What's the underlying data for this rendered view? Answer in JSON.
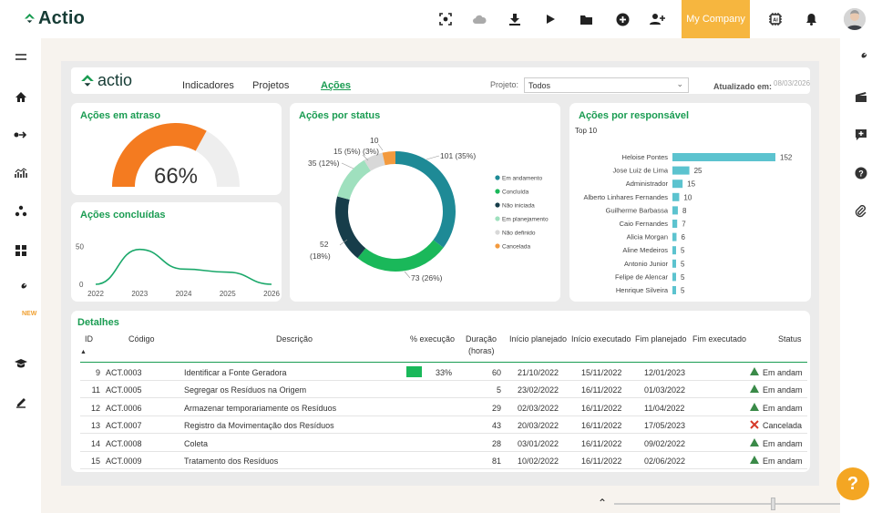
{
  "topbar": {
    "brand": "Actio",
    "company": "My Company",
    "icons": [
      "scan-icon",
      "cloud-icon",
      "download-icon",
      "play-icon",
      "folder-icon",
      "add-circle-icon",
      "add-user-icon",
      "ai-chip-icon",
      "bell-icon"
    ]
  },
  "leftbar": {
    "new_badge": "NEW",
    "icons": [
      "menu-icon",
      "home-icon",
      "flow-icon",
      "analytics-icon",
      "nodes-icon",
      "grid-icon",
      "wrench-icon",
      "graduation-cap-icon",
      "sign-icon"
    ]
  },
  "rightbar": {
    "icons": [
      "wrench-icon",
      "clapperboard-icon",
      "comment-add-icon",
      "help-circle-icon",
      "paperclip-icon"
    ]
  },
  "report": {
    "logo": "actio",
    "tabs": [
      "Indicadores",
      "Projetos",
      "Ações"
    ],
    "active_tab": "Ações",
    "project_label": "Projeto:",
    "project_value": "Todos",
    "updated_label": "Atualizado em:",
    "updated_value": "08/03/2026"
  },
  "gauge": {
    "title": "Ações em atraso",
    "value_text": "66%",
    "percent": 66,
    "color": "#f47b20"
  },
  "concluidas": {
    "title": "Ações concluídas"
  },
  "status": {
    "title": "Ações por status",
    "legend": [
      "Em andamento",
      "Concluída",
      "Não iniciada",
      "Em planejamento",
      "Não definido",
      "Cancelada"
    ]
  },
  "responsavel": {
    "title": "Ações por responsável",
    "subtitle": "Top 10"
  },
  "chart_data": [
    {
      "type": "line",
      "title": "Ações concluídas",
      "x": [
        "2022",
        "2023",
        "2024",
        "2025",
        "2026"
      ],
      "series": [
        {
          "values": [
            0,
            46,
            20,
            16,
            0
          ]
        }
      ],
      "y_ticks": [
        "50",
        "0"
      ],
      "ylim": [
        0,
        60
      ]
    },
    {
      "type": "pie",
      "title": "Ações por status",
      "categories": [
        "Em andamento",
        "Concluída",
        "Não iniciada",
        "Em planejamento",
        "Não definido",
        "Cancelada"
      ],
      "values": [
        101,
        73,
        52,
        35,
        15,
        10
      ],
      "labels": [
        "101 (35%)",
        "73 (26%)",
        "52",
        "(18%)",
        "35 (12%)",
        "15 (5%)",
        "(3%)",
        "10"
      ],
      "colors": [
        "#1e8a96",
        "#1ab85a",
        "#173d4a",
        "#9fe0be",
        "#d8d8d8",
        "#f39a3e"
      ]
    },
    {
      "type": "bar",
      "title": "Ações por responsável",
      "subtitle": "Top 10",
      "categories": [
        "Heloise Pontes",
        "Jose Luiz de Lima",
        "Administrador",
        "Alberto Linhares Fernandes",
        "Guilherme Barbassa",
        "Caio Fernandes",
        "Alicia Morgan",
        "Aline Medeiros",
        "Antonio Junior",
        "Felipe de Alencar",
        "Henrique Silveira"
      ],
      "values": [
        152,
        25,
        15,
        10,
        8,
        7,
        6,
        5,
        5,
        5,
        5
      ],
      "color": "#5cc3cf"
    }
  ],
  "table": {
    "title": "Detalhes",
    "headers": [
      "ID",
      "Código",
      "Descrição",
      "% execução",
      "Duração",
      "(horas)",
      "Início planejado",
      "Início executado",
      "Fim planejado",
      "Fim executado",
      "Status"
    ],
    "rows": [
      {
        "id": "9",
        "code": "ACT.0003",
        "desc": "Identificar a Fonte Geradora",
        "pct": "33%",
        "pct_value": 33,
        "dur": "60",
        "ip": "21/10/2022",
        "ie": "15/11/2022",
        "fp": "12/01/2023",
        "fe": "",
        "status": "Em andam",
        "status_type": "ok"
      },
      {
        "id": "11",
        "code": "ACT.0005",
        "desc": "Segregar os Resíduos na Origem",
        "pct": "",
        "pct_value": 0,
        "dur": "5",
        "ip": "23/02/2022",
        "ie": "16/11/2022",
        "fp": "01/03/2022",
        "fe": "",
        "status": "Em andam",
        "status_type": "ok"
      },
      {
        "id": "12",
        "code": "ACT.0006",
        "desc": "Armazenar temporariamente os Resíduos",
        "pct": "",
        "pct_value": 0,
        "dur": "29",
        "ip": "02/03/2022",
        "ie": "16/11/2022",
        "fp": "11/04/2022",
        "fe": "",
        "status": "Em andam",
        "status_type": "ok"
      },
      {
        "id": "13",
        "code": "ACT.0007",
        "desc": "Registro da Movimentação dos Resíduos",
        "pct": "",
        "pct_value": 0,
        "dur": "43",
        "ip": "20/03/2022",
        "ie": "16/11/2022",
        "fp": "17/05/2023",
        "fe": "",
        "status": "Cancelada",
        "status_type": "cancel"
      },
      {
        "id": "14",
        "code": "ACT.0008",
        "desc": "Coleta",
        "pct": "",
        "pct_value": 0,
        "dur": "28",
        "ip": "03/01/2022",
        "ie": "16/11/2022",
        "fp": "09/02/2022",
        "fe": "",
        "status": "Em andam",
        "status_type": "ok"
      },
      {
        "id": "15",
        "code": "ACT.0009",
        "desc": "Tratamento dos Resíduos",
        "pct": "",
        "pct_value": 0,
        "dur": "81",
        "ip": "10/02/2022",
        "ie": "16/11/2022",
        "fp": "02/06/2022",
        "fe": "",
        "status": "Em andam",
        "status_type": "ok"
      }
    ]
  }
}
